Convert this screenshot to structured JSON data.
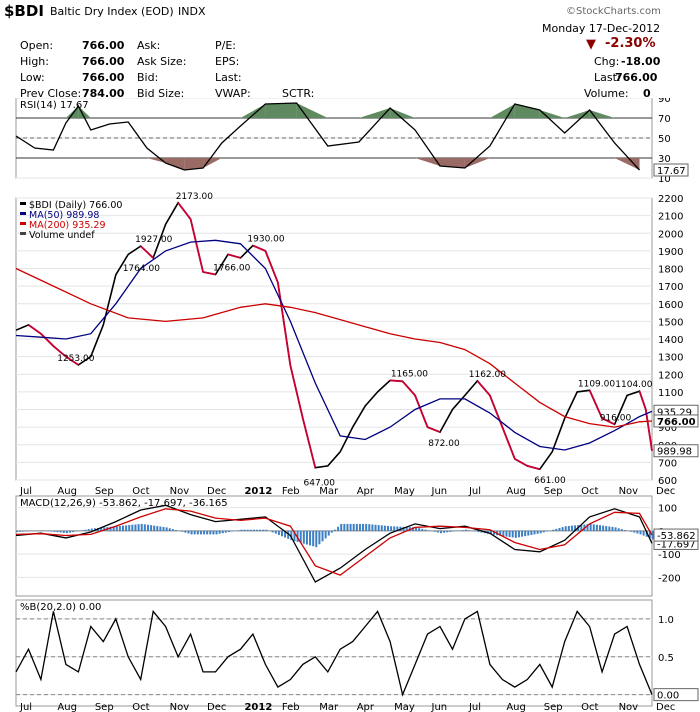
{
  "header": {
    "symbol": "$BDI",
    "name": "Baltic Dry Index (EOD)",
    "exchange": "INDX",
    "watermark": "©StockCharts.com",
    "date": "Monday  17-Dec-2012",
    "pct_change": "-2.30%",
    "chg_label": "Chg:",
    "chg_value": "-18.00",
    "last_label": "Last:",
    "last_value": "766.00",
    "volume_label": "Volume:",
    "volume_value": "0",
    "fields": [
      {
        "label": "Open:",
        "value": "766.00"
      },
      {
        "label": "High:",
        "value": "766.00"
      },
      {
        "label": "Low:",
        "value": "766.00"
      },
      {
        "label": "Prev Close:",
        "value": "784.00"
      }
    ],
    "col2": [
      "Ask:",
      "Ask Size:",
      "Bid:",
      "Bid Size:"
    ],
    "col3": [
      "P/E:",
      "EPS:",
      "Last:",
      "VWAP:"
    ],
    "sctr": "SCTR:",
    "colors": {
      "down": "#8b0000",
      "up_arrow": "#8b0000"
    }
  },
  "chart_data": [
    {
      "type": "line",
      "panel": "rsi",
      "title": "RSI(14) 17.67",
      "ylim": [
        10,
        90
      ],
      "yticks": [
        10,
        30,
        50,
        70,
        90
      ],
      "last_value_label": "17.67",
      "series": [
        {
          "name": "RSI(14)",
          "color": "#000000",
          "x": [
            0,
            3,
            6,
            8,
            10,
            12,
            15,
            18,
            21,
            24,
            27,
            30,
            33,
            36,
            40,
            45,
            50,
            55,
            60,
            64,
            68,
            72,
            76,
            80,
            84,
            88,
            92,
            96,
            100
          ],
          "values": [
            52,
            40,
            38,
            65,
            82,
            58,
            64,
            66,
            40,
            25,
            18,
            20,
            45,
            62,
            84,
            85,
            42,
            46,
            80,
            58,
            22,
            20,
            42,
            84,
            78,
            55,
            78,
            45,
            18
          ]
        }
      ]
    },
    {
      "type": "line",
      "panel": "price",
      "legend": [
        "$BDI (Daily) 766.00",
        "MA(50) 989.98",
        "MA(200) 935.29",
        "Volume undef"
      ],
      "ylim": [
        600,
        2200
      ],
      "yticks": [
        600,
        700,
        800,
        900,
        1000,
        1100,
        1200,
        1300,
        1400,
        1500,
        1600,
        1700,
        1800,
        1900,
        2000,
        2100,
        2200
      ],
      "xlabels": [
        "Jul",
        "Aug",
        "Sep",
        "Oct",
        "Nov",
        "Dec",
        "2012",
        "Feb",
        "Mar",
        "Apr",
        "May",
        "Jun",
        "Jul",
        "Aug",
        "Sep",
        "Oct",
        "Nov",
        "Dec"
      ],
      "annotations": [
        {
          "text": "1253.00",
          "x": 9.5,
          "y": 1253
        },
        {
          "text": "1764.00",
          "x": 20,
          "y": 1764
        },
        {
          "text": "1927.00",
          "x": 22,
          "y": 1927
        },
        {
          "text": "2173.00",
          "x": 28.5,
          "y": 2173
        },
        {
          "text": "1766.00",
          "x": 34.5,
          "y": 1766
        },
        {
          "text": "1930.00",
          "x": 40,
          "y": 1930
        },
        {
          "text": "647.00",
          "x": 49,
          "y": 647
        },
        {
          "text": "1165.00",
          "x": 63,
          "y": 1165
        },
        {
          "text": "872.00",
          "x": 69,
          "y": 872
        },
        {
          "text": "1162.00",
          "x": 75.5,
          "y": 1162
        },
        {
          "text": "661.00",
          "x": 86,
          "y": 661
        },
        {
          "text": "1109.00",
          "x": 93,
          "y": 1109
        },
        {
          "text": "1104.00",
          "x": 99,
          "y": 1104
        },
        {
          "text": "916.00",
          "x": 96.5,
          "y": 916
        }
      ],
      "right_labels": [
        "989.98",
        "935.29",
        "766.00"
      ],
      "series": [
        {
          "name": "$BDI (Daily)",
          "color": "#000000",
          "color_down": "#cc0033",
          "x": [
            0,
            2,
            4,
            6,
            8,
            10,
            12,
            14,
            16,
            18,
            20,
            22,
            24,
            26,
            28,
            30,
            32,
            34,
            36,
            38,
            40,
            42,
            44,
            46,
            48,
            50,
            52,
            54,
            56,
            58,
            60,
            62,
            64,
            66,
            68,
            70,
            72,
            74,
            76,
            78,
            80,
            82,
            84,
            86,
            88,
            90,
            92,
            94,
            96,
            98,
            100,
            101,
            102
          ],
          "values": [
            1450,
            1480,
            1430,
            1360,
            1300,
            1253,
            1300,
            1480,
            1764,
            1880,
            1927,
            1860,
            2050,
            2173,
            2080,
            1780,
            1766,
            1880,
            1860,
            1930,
            1900,
            1720,
            1250,
            950,
            670,
            680,
            760,
            900,
            1020,
            1100,
            1165,
            1160,
            1080,
            900,
            872,
            1000,
            1080,
            1162,
            1080,
            900,
            720,
            680,
            661,
            760,
            950,
            1100,
            1109,
            950,
            916,
            1080,
            1104,
            1000,
            766
          ]
        },
        {
          "name": "MA(50)",
          "color": "#000080",
          "x": [
            0,
            4,
            8,
            12,
            16,
            20,
            24,
            28,
            32,
            36,
            40,
            44,
            48,
            52,
            56,
            60,
            64,
            68,
            72,
            76,
            80,
            84,
            88,
            92,
            96,
            100,
            102
          ],
          "values": [
            1420,
            1410,
            1400,
            1430,
            1600,
            1800,
            1900,
            1950,
            1960,
            1940,
            1800,
            1500,
            1150,
            850,
            830,
            900,
            1000,
            1060,
            1060,
            980,
            870,
            790,
            770,
            810,
            880,
            960,
            990
          ]
        },
        {
          "name": "MA(200)",
          "color": "#cc0000",
          "x": [
            0,
            6,
            12,
            18,
            24,
            30,
            36,
            40,
            44,
            48,
            52,
            56,
            60,
            64,
            68,
            72,
            76,
            80,
            84,
            88,
            92,
            96,
            100,
            102
          ],
          "values": [
            1800,
            1700,
            1600,
            1520,
            1500,
            1520,
            1580,
            1600,
            1580,
            1550,
            1510,
            1470,
            1430,
            1400,
            1380,
            1340,
            1260,
            1150,
            1040,
            960,
            920,
            900,
            930,
            935
          ]
        }
      ]
    },
    {
      "type": "line",
      "panel": "macd",
      "title": "MACD(12,26,9) -53.862, -17.697, -36.165",
      "ylim": [
        -280,
        150
      ],
      "yticks": [
        -200,
        -100,
        0,
        100
      ],
      "right_labels": [
        "-17.697",
        "-53.862"
      ],
      "series": [
        {
          "name": "MACD",
          "color": "#000000",
          "x": [
            0,
            4,
            8,
            12,
            16,
            20,
            24,
            28,
            32,
            36,
            40,
            44,
            48,
            52,
            56,
            60,
            64,
            68,
            72,
            76,
            80,
            84,
            88,
            92,
            96,
            100,
            102
          ],
          "values": [
            -20,
            -10,
            -30,
            -5,
            40,
            90,
            110,
            70,
            40,
            50,
            60,
            -20,
            -220,
            -160,
            -80,
            -10,
            30,
            10,
            20,
            -10,
            -80,
            -90,
            -40,
            60,
            95,
            60,
            -54
          ]
        },
        {
          "name": "Signal",
          "color": "#cc0000",
          "x": [
            0,
            4,
            8,
            12,
            16,
            20,
            24,
            28,
            32,
            36,
            40,
            44,
            48,
            52,
            56,
            60,
            64,
            68,
            72,
            76,
            80,
            84,
            88,
            92,
            96,
            100,
            102
          ],
          "values": [
            -15,
            -12,
            -20,
            -15,
            20,
            60,
            95,
            85,
            55,
            45,
            55,
            20,
            -150,
            -190,
            -110,
            -30,
            15,
            20,
            15,
            5,
            -50,
            -80,
            -60,
            30,
            80,
            75,
            -18
          ]
        }
      ]
    },
    {
      "type": "line",
      "panel": "percent_b",
      "title": "%B(20,2.0) 0.00",
      "ylim": [
        -0.15,
        1.25
      ],
      "yticks": [
        0.0,
        0.5,
        1.0
      ],
      "right_labels": [
        "0.00"
      ],
      "series": [
        {
          "name": "%B",
          "color": "#000000",
          "x": [
            0,
            2,
            4,
            6,
            8,
            10,
            12,
            14,
            16,
            18,
            20,
            22,
            24,
            26,
            28,
            30,
            32,
            34,
            36,
            38,
            40,
            42,
            44,
            46,
            48,
            50,
            52,
            54,
            56,
            58,
            60,
            62,
            64,
            66,
            68,
            70,
            72,
            74,
            76,
            78,
            80,
            82,
            84,
            86,
            88,
            90,
            92,
            94,
            96,
            98,
            100,
            102
          ],
          "values": [
            0.3,
            0.6,
            0.2,
            1.1,
            0.4,
            0.3,
            0.9,
            0.7,
            1.0,
            0.5,
            0.2,
            1.1,
            0.9,
            0.5,
            0.8,
            0.3,
            0.3,
            0.5,
            0.6,
            0.8,
            0.4,
            0.1,
            0.2,
            0.4,
            0.5,
            0.3,
            0.6,
            0.7,
            0.9,
            1.1,
            0.7,
            0.0,
            0.4,
            0.8,
            0.9,
            0.6,
            1.0,
            1.1,
            0.4,
            0.2,
            0.1,
            0.2,
            0.4,
            0.1,
            0.7,
            1.1,
            0.9,
            0.3,
            0.8,
            0.9,
            0.4,
            0.0
          ]
        }
      ]
    }
  ]
}
